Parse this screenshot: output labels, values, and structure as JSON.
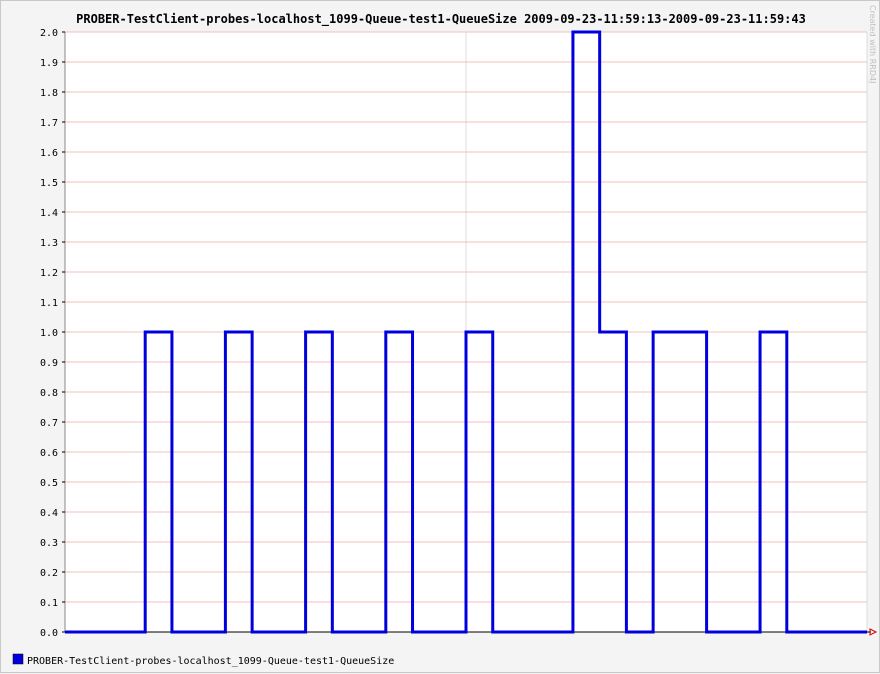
{
  "chart_data": {
    "type": "line",
    "title": "PROBER-TestClient-probes-localhost_1099-Queue-test1-QueueSize 2009-09-23-11:59:13-2009-09-23-11:59:43",
    "xlabel": "",
    "ylabel": "",
    "ylim": [
      0,
      2
    ],
    "y_ticks": [
      "0.0",
      "0.1",
      "0.2",
      "0.3",
      "0.4",
      "0.5",
      "0.6",
      "0.7",
      "0.8",
      "0.9",
      "1.0",
      "1.1",
      "1.2",
      "1.3",
      "1.4",
      "1.5",
      "1.6",
      "1.7",
      "1.8",
      "1.9",
      "2.0"
    ],
    "x_unit": "seconds since 2009-09-23 11:59:13",
    "xlim": [
      0,
      30
    ],
    "step": "post",
    "grid": true,
    "legend_position": "bottom-left",
    "watermark": "Created with RRD4J",
    "series": [
      {
        "name": "PROBER-TestClient-probes-localhost_1099-Queue-test1-QueueSize",
        "color": "#0000dd",
        "points": [
          [
            0,
            0
          ],
          [
            3,
            1
          ],
          [
            4,
            0
          ],
          [
            6,
            1
          ],
          [
            7,
            0
          ],
          [
            9,
            1
          ],
          [
            10,
            0
          ],
          [
            12,
            1
          ],
          [
            13,
            0
          ],
          [
            15,
            1
          ],
          [
            16,
            0
          ],
          [
            19,
            2
          ],
          [
            20,
            1
          ],
          [
            21,
            0
          ],
          [
            22,
            1
          ],
          [
            24,
            0
          ],
          [
            26,
            1
          ],
          [
            27,
            0
          ],
          [
            30,
            0
          ]
        ]
      }
    ]
  }
}
